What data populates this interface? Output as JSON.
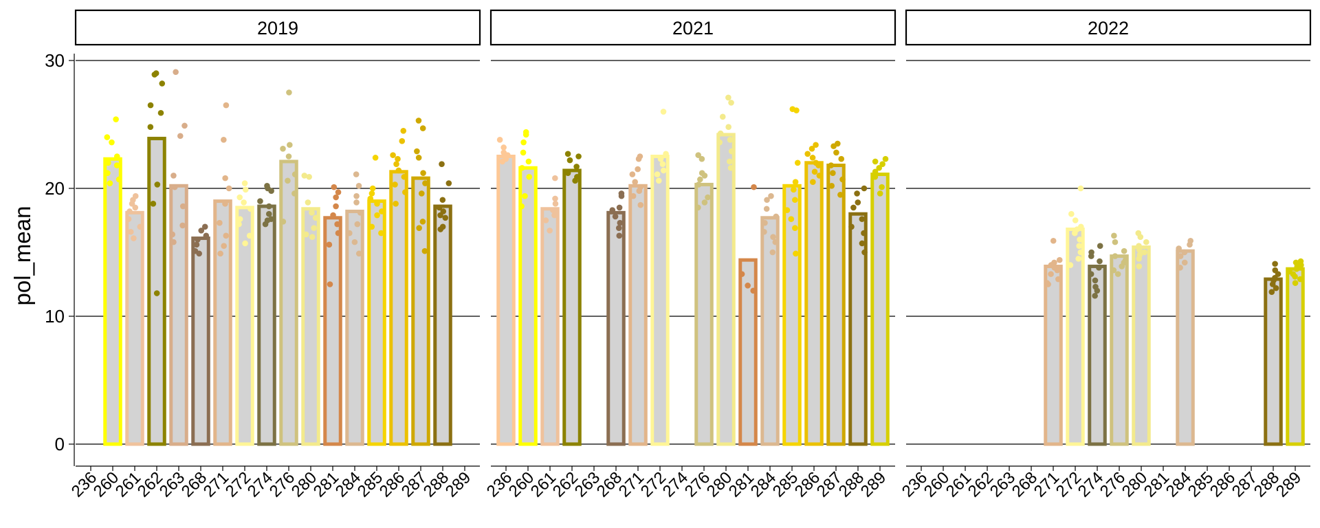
{
  "chart_data": {
    "type": "bar",
    "ylabel": "pol_mean",
    "xlabel": "",
    "ylim": [
      0,
      30
    ],
    "yticks": [
      0,
      10,
      20,
      30
    ],
    "grid": "horizontal major",
    "categories": [
      "236",
      "260",
      "261",
      "262",
      "263",
      "268",
      "271",
      "272",
      "274",
      "276",
      "280",
      "281",
      "284",
      "285",
      "286",
      "287",
      "288",
      "289"
    ],
    "colors": {
      "236": "#fdc896",
      "260": "#ffff00",
      "261": "#efc29c",
      "262": "#8c8200",
      "263": "#d8ad8a",
      "268": "#8b6e52",
      "271": "#e2b58a",
      "272": "#fff597",
      "274": "#7c7244",
      "276": "#cfc27e",
      "280": "#f3ea8c",
      "281": "#d4874a",
      "284": "#dcb890",
      "285": "#f5d400",
      "286": "#ebc100",
      "287": "#cfa800",
      "288": "#8b7012",
      "289": "#d7cf00"
    },
    "panels": [
      {
        "facet": "2019",
        "bars": [
          {
            "cat": "260",
            "value": 22.3,
            "points": [
              25.4,
              24.0,
              23.6,
              22.5,
              22.0,
              21.8,
              21.2,
              20.7,
              20.4
            ]
          },
          {
            "cat": "261",
            "value": 18.1,
            "points": [
              19.4,
              19.1,
              18.8,
              18.5,
              18.2,
              17.6,
              17.0,
              16.6,
              16.1
            ]
          },
          {
            "cat": "262",
            "value": 23.9,
            "points": [
              29.0,
              28.9,
              28.2,
              26.5,
              25.9,
              24.8,
              20.3,
              18.8,
              11.8
            ]
          },
          {
            "cat": "263",
            "value": 20.2,
            "points": [
              29.1,
              24.9,
              24.1,
              21.0,
              20.1,
              18.6,
              17.1,
              16.4,
              15.8
            ]
          },
          {
            "cat": "268",
            "value": 16.1,
            "points": [
              17.0,
              16.7,
              16.3,
              16.0,
              15.6,
              15.1,
              14.9
            ]
          },
          {
            "cat": "271",
            "value": 19.0,
            "points": [
              26.5,
              23.8,
              20.8,
              20.0,
              18.8,
              17.3,
              16.3,
              15.5,
              14.9
            ]
          },
          {
            "cat": "272",
            "value": 18.5,
            "points": [
              20.4,
              19.9,
              19.3,
              18.9,
              18.4,
              17.6,
              17.2,
              16.3,
              15.7
            ]
          },
          {
            "cat": "274",
            "value": 18.6,
            "points": [
              20.2,
              20.0,
              19.8,
              19.0,
              18.6,
              18.0,
              17.6,
              17.5,
              17.2
            ]
          },
          {
            "cat": "276",
            "value": 22.1,
            "points": [
              27.5,
              23.4,
              23.1,
              22.5,
              21.1,
              20.6,
              19.6,
              17.4
            ]
          },
          {
            "cat": "280",
            "value": 18.4,
            "points": [
              21.0,
              20.9,
              18.9,
              18.1,
              17.7,
              16.9,
              16.4,
              16.2
            ]
          },
          {
            "cat": "281",
            "value": 17.7,
            "points": [
              20.1,
              19.7,
              19.3,
              18.6,
              17.9,
              17.2,
              16.5,
              15.6,
              12.5
            ]
          },
          {
            "cat": "284",
            "value": 18.2,
            "points": [
              21.1,
              20.2,
              19.4,
              18.9,
              18.1,
              17.2,
              16.5,
              15.8,
              14.9
            ]
          },
          {
            "cat": "285",
            "value": 19.0,
            "points": [
              22.4,
              20.0,
              19.6,
              19.2,
              18.8,
              18.2,
              17.9,
              17.0,
              16.5
            ]
          },
          {
            "cat": "286",
            "value": 21.3,
            "points": [
              24.5,
              23.7,
              22.6,
              22.3,
              21.9,
              21.4,
              20.9,
              20.3,
              19.7,
              18.8
            ]
          },
          {
            "cat": "287",
            "value": 20.8,
            "points": [
              25.3,
              24.7,
              22.9,
              22.4,
              21.2,
              20.4,
              19.6,
              17.4,
              16.9,
              15.1
            ]
          },
          {
            "cat": "288",
            "value": 18.6,
            "points": [
              21.9,
              20.4,
              19.1,
              18.5,
              18.2,
              17.9,
              17.7,
              17.0,
              16.8
            ]
          }
        ]
      },
      {
        "facet": "2021",
        "bars": [
          {
            "cat": "236",
            "value": 22.5,
            "points": [
              23.8,
              23.2,
              22.8,
              22.6,
              22.3,
              22.1
            ]
          },
          {
            "cat": "260",
            "value": 21.6,
            "points": [
              24.4,
              24.2,
              23.6,
              22.8,
              22.1,
              21.6,
              20.9,
              19.4,
              18.6
            ]
          },
          {
            "cat": "261",
            "value": 18.4,
            "points": [
              20.8,
              19.2,
              18.8,
              18.3,
              18.1,
              17.9,
              17.5,
              16.7
            ]
          },
          {
            "cat": "262",
            "value": 21.4,
            "points": [
              22.7,
              22.5,
              22.2,
              21.7,
              21.2,
              20.9,
              20.6
            ]
          },
          {
            "cat": "268",
            "value": 18.1,
            "points": [
              19.6,
              19.4,
              18.5,
              18.3,
              17.8,
              17.3,
              16.9,
              16.3
            ]
          },
          {
            "cat": "271",
            "value": 20.2,
            "points": [
              22.5,
              22.3,
              21.5,
              21.1,
              20.5,
              20.1,
              19.8,
              19.4,
              18.7
            ]
          },
          {
            "cat": "272",
            "value": 22.5,
            "points": [
              26.0,
              22.7,
              22.4,
              22.3,
              21.9,
              21.4,
              21.1,
              20.6
            ]
          },
          {
            "cat": "276",
            "value": 20.3,
            "points": [
              22.6,
              22.3,
              21.2,
              21.0,
              20.7,
              20.3,
              19.3,
              18.9,
              18.5
            ]
          },
          {
            "cat": "280",
            "value": 24.2,
            "points": [
              27.1,
              26.7,
              25.6,
              24.8,
              24.3,
              23.8,
              23.6,
              22.9,
              22.1,
              21.6
            ]
          },
          {
            "cat": "281",
            "value": 14.4,
            "points": [
              20.1,
              13.3,
              12.4,
              12.0
            ]
          },
          {
            "cat": "284",
            "value": 17.7,
            "points": [
              19.4,
              19.1,
              18.4,
              17.8,
              17.3,
              16.6,
              16.2,
              15.8,
              15.0
            ]
          },
          {
            "cat": "285",
            "value": 20.2,
            "points": [
              26.2,
              26.1,
              22.0,
              20.5,
              19.9,
              19.1,
              18.3,
              17.6,
              16.9,
              14.9
            ]
          },
          {
            "cat": "286",
            "value": 22.0,
            "points": [
              23.4,
              23.1,
              22.7,
              22.4,
              22.0,
              21.8,
              21.3,
              21.0,
              20.5
            ]
          },
          {
            "cat": "287",
            "value": 21.8,
            "points": [
              23.5,
              23.3,
              22.8,
              22.3,
              21.8,
              21.2,
              20.7,
              20.2,
              19.5
            ]
          },
          {
            "cat": "288",
            "value": 18.0,
            "points": [
              20.0,
              19.6,
              18.9,
              18.5,
              17.6,
              17.0,
              16.5,
              15.7,
              15.0
            ]
          },
          {
            "cat": "289",
            "value": 21.1,
            "points": [
              22.3,
              22.1,
              21.9,
              21.6,
              21.3,
              20.9,
              20.1,
              19.6
            ]
          }
        ]
      },
      {
        "facet": "2022",
        "bars": [
          {
            "cat": "271",
            "value": 13.9,
            "points": [
              15.9,
              14.4,
              14.2,
              14.0,
              13.8,
              13.6,
              13.3,
              12.9,
              12.6,
              12.5
            ]
          },
          {
            "cat": "272",
            "value": 16.8,
            "points": [
              20.0,
              18.0,
              17.5,
              17.0,
              16.8,
              16.5,
              16.0,
              15.5,
              15.0,
              14.5,
              14.0
            ]
          },
          {
            "cat": "274",
            "value": 13.9,
            "points": [
              15.5,
              15.0,
              14.7,
              14.3,
              13.8,
              13.3,
              12.8,
              12.3,
              12.0,
              11.6
            ]
          },
          {
            "cat": "276",
            "value": 14.7,
            "points": [
              16.3,
              15.8,
              15.1,
              14.7,
              14.4,
              14.2,
              13.9,
              13.6,
              13.3
            ]
          },
          {
            "cat": "280",
            "value": 15.4,
            "points": [
              16.5,
              16.2,
              15.8,
              15.5,
              15.2,
              15.0,
              14.8,
              14.5,
              13.9
            ]
          },
          {
            "cat": "284",
            "value": 15.1,
            "points": [
              15.9,
              15.6,
              15.3,
              15.0,
              14.7,
              14.2,
              13.8
            ]
          },
          {
            "cat": "288",
            "value": 12.9,
            "points": [
              14.1,
              13.6,
              13.3,
              13.0,
              12.8,
              12.5,
              12.2,
              11.9
            ]
          },
          {
            "cat": "289",
            "value": 13.7,
            "points": [
              14.3,
              14.2,
              14.0,
              13.9,
              13.7,
              13.5,
              13.3,
              13.1,
              12.9,
              12.6
            ]
          }
        ]
      }
    ]
  }
}
